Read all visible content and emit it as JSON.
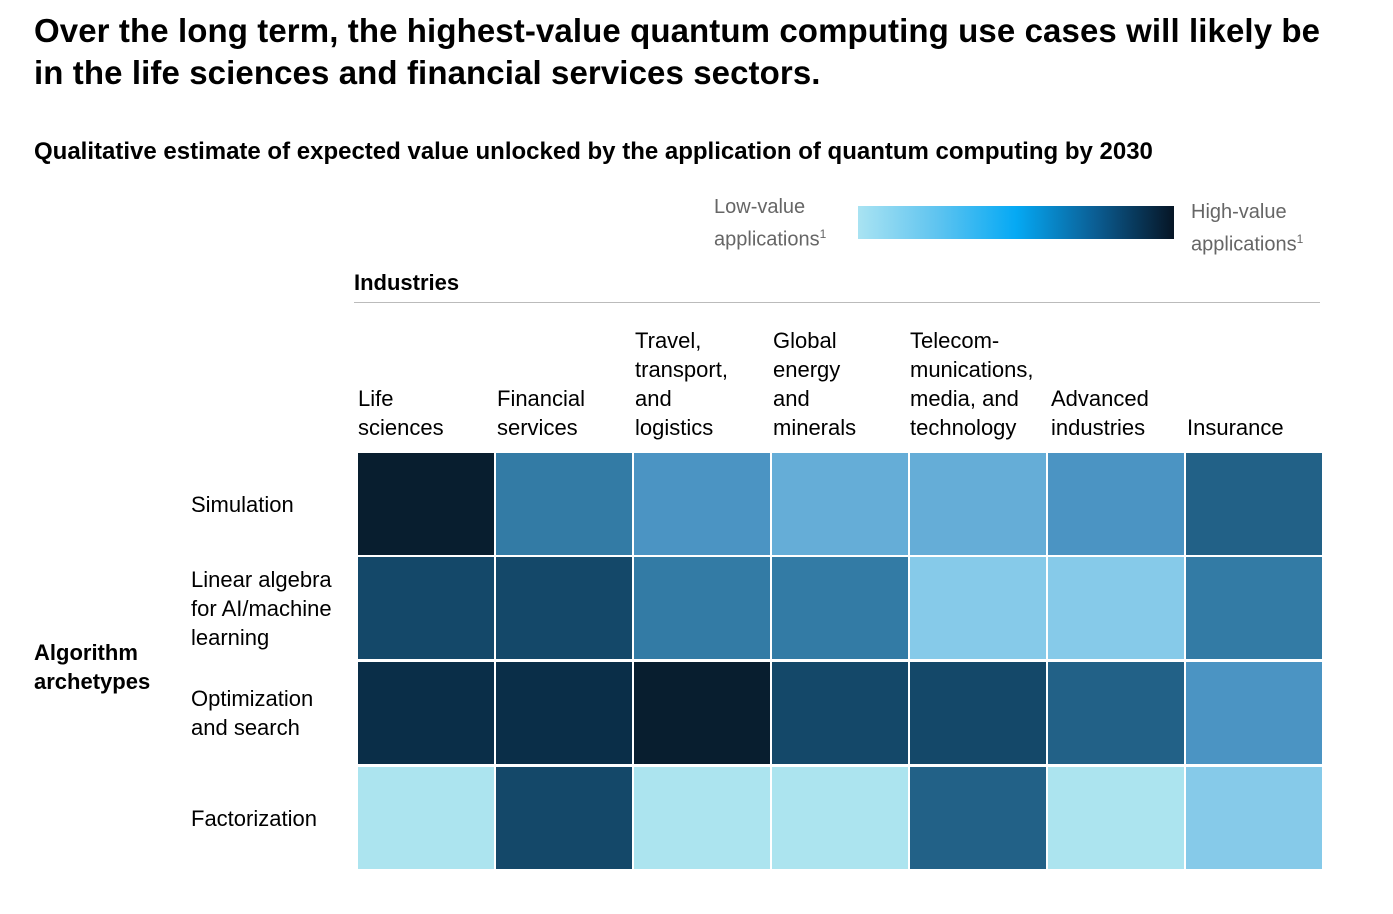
{
  "title": "Over the long term, the highest-value quantum computing use cases will likely be in the life sciences and financial services sectors.",
  "subtitle": "Qualitative estimate of expected value unlocked by the application of quantum computing by 2030",
  "legend": {
    "low_label": "Low-value\napplications",
    "high_label": "High-value\napplications",
    "footnote_marker": "1",
    "gradient_colors": [
      "#a9e3f2",
      "#5fc4f0",
      "#05a9f4",
      "#0b5e94",
      "#061525"
    ]
  },
  "industries_header": "Industries",
  "rows_header": "Algorithm\narchetypes",
  "chart_data": {
    "type": "heatmap",
    "title": "Qualitative estimate of expected value unlocked by the application of quantum computing by 2030",
    "xlabel": "Industries",
    "ylabel": "Algorithm archetypes",
    "columns": [
      "Life\nsciences",
      "Financial\nservices",
      "Travel,\ntransport,\nand\nlogistics",
      "Global\nenergy\nand\nminerals",
      "Telecom-\nmunications,\nmedia, and\ntechnology",
      "Advanced\nindustries",
      "Insurance"
    ],
    "rows": [
      "Simulation",
      "Linear algebra\nfor AI/machine\nlearning",
      "Optimization\nand search",
      "Factorization"
    ],
    "value_scale": "1 = low-value applications, 7 = high-value applications",
    "values": [
      [
        7,
        3,
        2,
        1,
        1,
        2,
        4
      ],
      [
        5,
        5,
        3,
        3,
        0,
        0,
        3
      ],
      [
        6,
        6,
        7,
        5,
        5,
        4,
        2
      ],
      [
        -1,
        5,
        -1,
        -1,
        4,
        -1,
        0
      ]
    ],
    "level_colors": {
      "-1": "#ace4ef",
      "0": "#86cae9",
      "1": "#65add7",
      "2": "#4b94c3",
      "3": "#337ba5",
      "4": "#226187",
      "5": "#144869",
      "6": "#0a2e48",
      "7": "#081e2f"
    }
  }
}
